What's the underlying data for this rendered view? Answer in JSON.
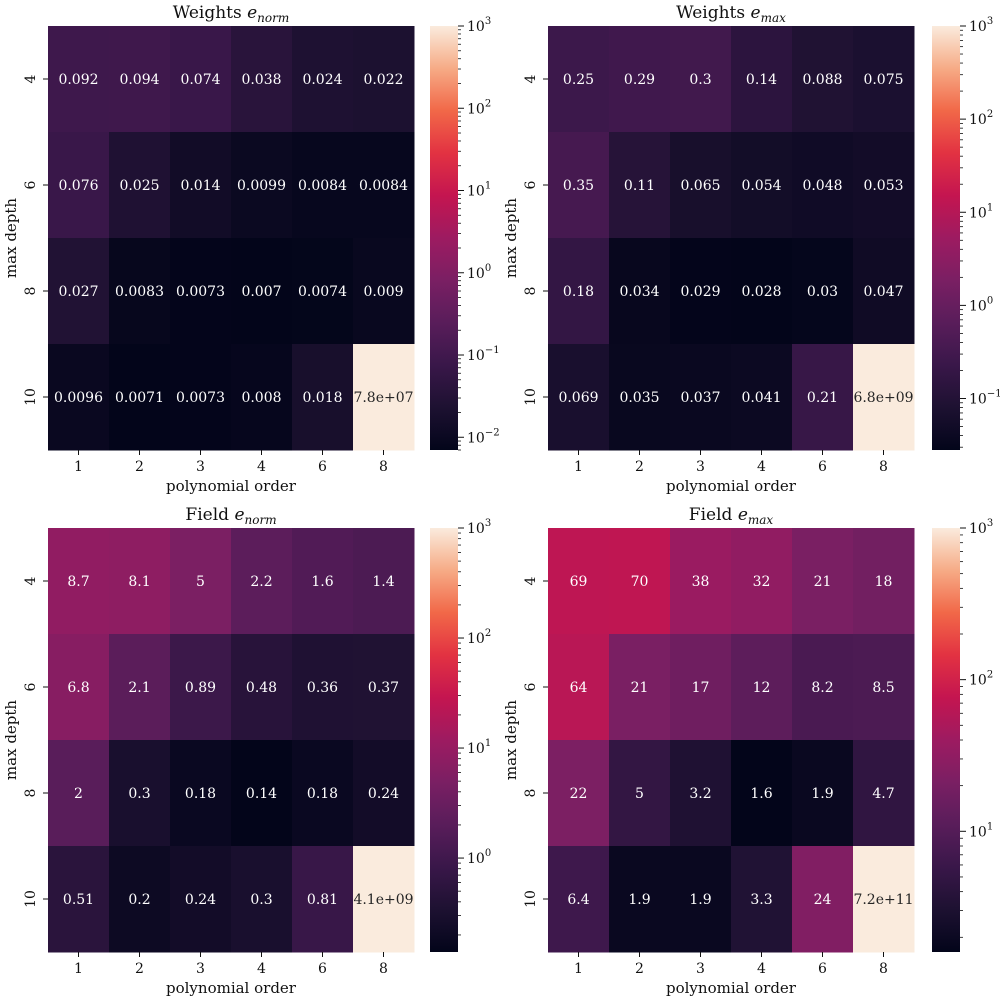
{
  "chart_data": [
    {
      "type": "heatmap",
      "title": "Weights e_norm",
      "title_main": "Weights",
      "title_var": "e",
      "title_sub": "norm",
      "xlabel": "polynomial order",
      "ylabel": "max depth",
      "x_categories": [
        "1",
        "2",
        "3",
        "4",
        "6",
        "8"
      ],
      "y_categories": [
        "4",
        "6",
        "8",
        "10"
      ],
      "values": [
        [
          0.092,
          0.094,
          0.074,
          0.038,
          0.024,
          0.022
        ],
        [
          0.076,
          0.025,
          0.014,
          0.0099,
          0.0084,
          0.0084
        ],
        [
          0.027,
          0.0083,
          0.0073,
          0.007,
          0.0074,
          0.009
        ],
        [
          0.0096,
          0.0071,
          0.0073,
          0.008,
          0.018,
          78000000
        ]
      ],
      "cell_labels": [
        [
          "0.092",
          "0.094",
          "0.074",
          "0.038",
          "0.024",
          "0.022"
        ],
        [
          "0.076",
          "0.025",
          "0.014",
          "0.0099",
          "0.0084",
          "0.0084"
        ],
        [
          "0.027",
          "0.0083",
          "0.0073",
          "0.007",
          "0.0074",
          "0.009"
        ],
        [
          "0.0096",
          "0.0071",
          "0.0073",
          "0.008",
          "0.018",
          "7.8e+07"
        ]
      ],
      "colorbar": {
        "scale": "log",
        "range": [
          0.007,
          1000
        ],
        "ticks": [
          {
            "base": "10",
            "exp": "3",
            "value": 1000
          },
          {
            "base": "10",
            "exp": "2",
            "value": 100
          },
          {
            "base": "10",
            "exp": "1",
            "value": 10
          },
          {
            "base": "10",
            "exp": "0",
            "value": 1
          },
          {
            "base": "10",
            "exp": "−1",
            "value": 0.1
          },
          {
            "base": "10",
            "exp": "−2",
            "value": 0.01
          }
        ]
      }
    },
    {
      "type": "heatmap",
      "title": "Weights e_max",
      "title_main": "Weights",
      "title_var": "e",
      "title_sub": "max",
      "xlabel": "polynomial order",
      "ylabel": "max depth",
      "x_categories": [
        "1",
        "2",
        "3",
        "4",
        "6",
        "8"
      ],
      "y_categories": [
        "4",
        "6",
        "8",
        "10"
      ],
      "values": [
        [
          0.25,
          0.29,
          0.3,
          0.14,
          0.088,
          0.075
        ],
        [
          0.35,
          0.11,
          0.065,
          0.054,
          0.048,
          0.053
        ],
        [
          0.18,
          0.034,
          0.029,
          0.028,
          0.03,
          0.047
        ],
        [
          0.069,
          0.035,
          0.037,
          0.041,
          0.21,
          6800000000
        ]
      ],
      "cell_labels": [
        [
          "0.25",
          "0.29",
          "0.3",
          "0.14",
          "0.088",
          "0.075"
        ],
        [
          "0.35",
          "0.11",
          "0.065",
          "0.054",
          "0.048",
          "0.053"
        ],
        [
          "0.18",
          "0.034",
          "0.029",
          "0.028",
          "0.03",
          "0.047"
        ],
        [
          "0.069",
          "0.035",
          "0.037",
          "0.041",
          "0.21",
          "6.8e+09"
        ]
      ],
      "colorbar": {
        "scale": "log",
        "range": [
          0.028,
          1000
        ],
        "ticks": [
          {
            "base": "10",
            "exp": "3",
            "value": 1000
          },
          {
            "base": "10",
            "exp": "2",
            "value": 100
          },
          {
            "base": "10",
            "exp": "1",
            "value": 10
          },
          {
            "base": "10",
            "exp": "0",
            "value": 1
          },
          {
            "base": "10",
            "exp": "−1",
            "value": 0.1
          }
        ]
      }
    },
    {
      "type": "heatmap",
      "title": "Field e_norm",
      "title_main": "Field",
      "title_var": "e",
      "title_sub": "norm",
      "xlabel": "polynomial order",
      "ylabel": "max depth",
      "x_categories": [
        "1",
        "2",
        "3",
        "4",
        "6",
        "8"
      ],
      "y_categories": [
        "4",
        "6",
        "8",
        "10"
      ],
      "values": [
        [
          8.7,
          8.1,
          5,
          2.2,
          1.6,
          1.4
        ],
        [
          6.8,
          2.1,
          0.89,
          0.48,
          0.36,
          0.37
        ],
        [
          2,
          0.3,
          0.18,
          0.14,
          0.18,
          0.24
        ],
        [
          0.51,
          0.2,
          0.24,
          0.3,
          0.81,
          4100000000
        ]
      ],
      "cell_labels": [
        [
          "8.7",
          "8.1",
          "5",
          "2.2",
          "1.6",
          "1.4"
        ],
        [
          "6.8",
          "2.1",
          "0.89",
          "0.48",
          "0.36",
          "0.37"
        ],
        [
          "2",
          "0.3",
          "0.18",
          "0.14",
          "0.18",
          "0.24"
        ],
        [
          "0.51",
          "0.2",
          "0.24",
          "0.3",
          "0.81",
          "4.1e+09"
        ]
      ],
      "colorbar": {
        "scale": "log",
        "range": [
          0.14,
          1000
        ],
        "ticks": [
          {
            "base": "10",
            "exp": "3",
            "value": 1000
          },
          {
            "base": "10",
            "exp": "2",
            "value": 100
          },
          {
            "base": "10",
            "exp": "1",
            "value": 10
          },
          {
            "base": "10",
            "exp": "0",
            "value": 1
          }
        ]
      }
    },
    {
      "type": "heatmap",
      "title": "Field e_max",
      "title_main": "Field",
      "title_var": "e",
      "title_sub": "max",
      "xlabel": "polynomial order",
      "ylabel": "max depth",
      "x_categories": [
        "1",
        "2",
        "3",
        "4",
        "6",
        "8"
      ],
      "y_categories": [
        "4",
        "6",
        "8",
        "10"
      ],
      "values": [
        [
          69,
          70,
          38,
          32,
          21,
          18
        ],
        [
          64,
          21,
          17,
          12,
          8.2,
          8.5
        ],
        [
          22,
          5,
          3.2,
          1.6,
          1.9,
          4.7
        ],
        [
          6.4,
          1.9,
          1.9,
          3.3,
          24,
          720000000000
        ]
      ],
      "cell_labels": [
        [
          "69",
          "70",
          "38",
          "32",
          "21",
          "18"
        ],
        [
          "64",
          "21",
          "17",
          "12",
          "8.2",
          "8.5"
        ],
        [
          "22",
          "5",
          "3.2",
          "1.6",
          "1.9",
          "4.7"
        ],
        [
          "6.4",
          "1.9",
          "1.9",
          "3.3",
          "24",
          "7.2e+11"
        ]
      ],
      "colorbar": {
        "scale": "log",
        "range": [
          1.6,
          1000
        ],
        "ticks": [
          {
            "base": "10",
            "exp": "3",
            "value": 1000
          },
          {
            "base": "10",
            "exp": "2",
            "value": 100
          },
          {
            "base": "10",
            "exp": "1",
            "value": 10
          }
        ]
      }
    }
  ]
}
